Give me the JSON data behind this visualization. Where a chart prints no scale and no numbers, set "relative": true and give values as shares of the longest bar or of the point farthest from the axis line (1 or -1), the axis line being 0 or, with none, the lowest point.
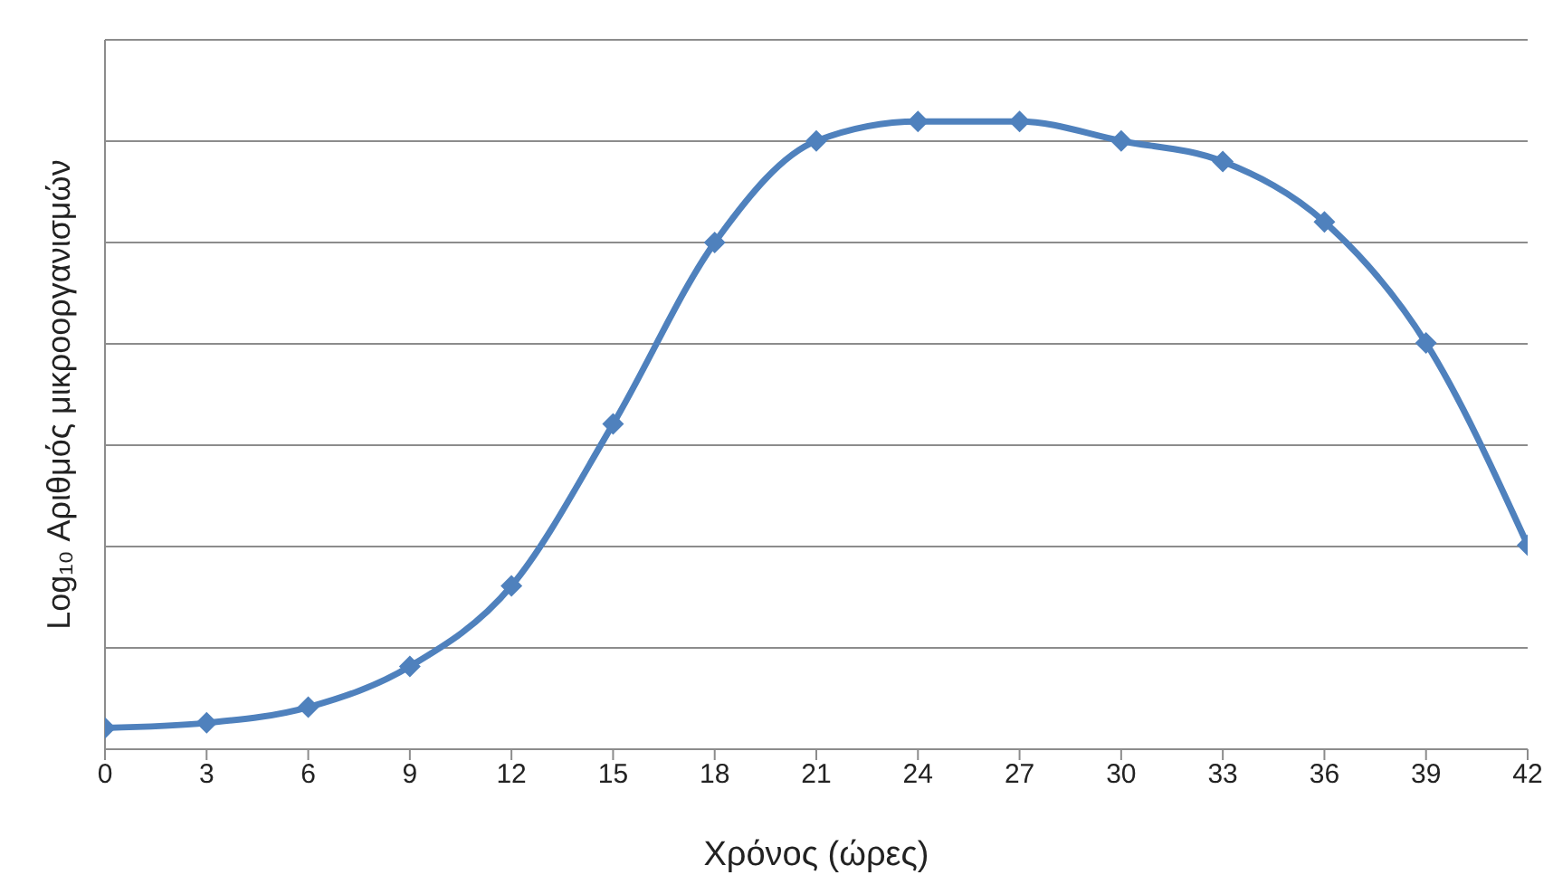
{
  "chart_data": {
    "type": "line",
    "xlabel": "Χρόνος (ώρες)",
    "ylabel": "Log₁₀ Αριθμός μικροοργανισμών",
    "relative": true,
    "x": [
      0,
      3,
      6,
      9,
      12,
      15,
      18,
      21,
      24,
      27,
      30,
      33,
      36,
      39,
      42
    ],
    "series": [
      {
        "color": "#4f81bd",
        "values": [
          0.034,
          0.042,
          0.067,
          0.132,
          0.26,
          0.518,
          0.807,
          0.969,
          1,
          1,
          0.969,
          0.936,
          0.84,
          0.647,
          0.325
        ]
      }
    ],
    "xlim": [
      0,
      42
    ],
    "xticks": [
      0,
      3,
      6,
      9,
      12,
      15,
      18,
      21,
      24,
      27,
      30,
      33,
      36,
      39,
      42
    ],
    "grid": "y",
    "marker": "diamond",
    "line_style": "solid",
    "legend": false
  }
}
